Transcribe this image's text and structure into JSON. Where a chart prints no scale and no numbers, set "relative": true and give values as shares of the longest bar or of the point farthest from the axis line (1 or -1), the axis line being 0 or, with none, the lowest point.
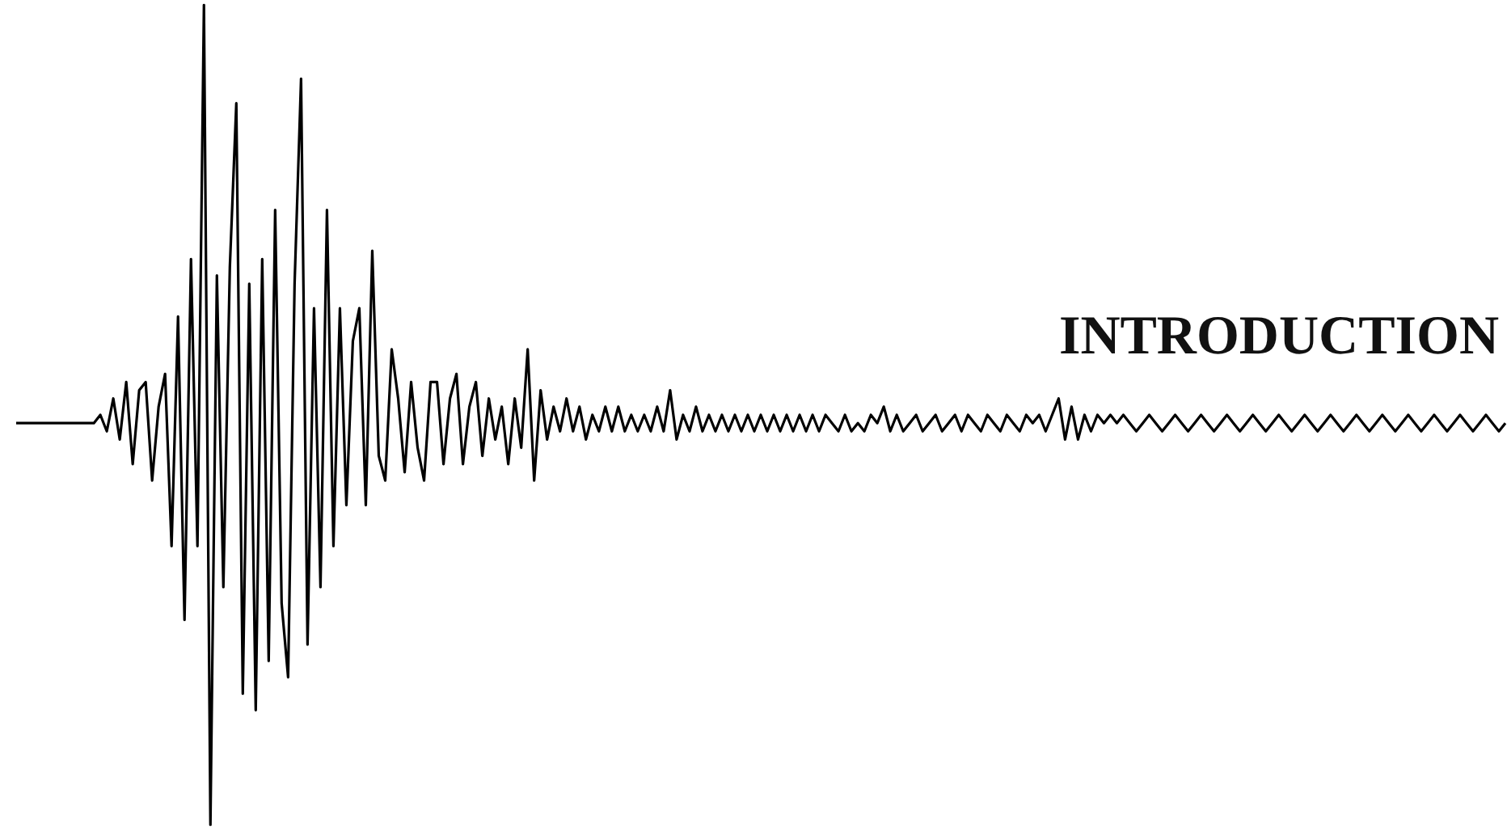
{
  "chart_data": {
    "type": "line",
    "title": "INTRODUCTION",
    "relative": true,
    "grid": false,
    "line_style": "solid",
    "categories": [
      null,
      null,
      null,
      null,
      null,
      null,
      null,
      null,
      null,
      null,
      null,
      null,
      null,
      null,
      null,
      null,
      null,
      null,
      null,
      null,
      null,
      null,
      null,
      null,
      null,
      null,
      null,
      null,
      null,
      null,
      null,
      null,
      null,
      null,
      null,
      null,
      null,
      null,
      null,
      null,
      null,
      null,
      null,
      null,
      null,
      null,
      null,
      null,
      null,
      null,
      null,
      null,
      null,
      null,
      null,
      null,
      null,
      null,
      null,
      null,
      null,
      null,
      null,
      null,
      null,
      null,
      null,
      null,
      null,
      null,
      null,
      null,
      null,
      null,
      null,
      null,
      null,
      null,
      null,
      null,
      null,
      null,
      null,
      null,
      null,
      null,
      null,
      null,
      null,
      null,
      null,
      null,
      null,
      null,
      null,
      null,
      null,
      null,
      null,
      null,
      null,
      null,
      null,
      null,
      null,
      null,
      null,
      null,
      null,
      null,
      null,
      null,
      null,
      null,
      null,
      null,
      null,
      null,
      null,
      null,
      null,
      null,
      null,
      null,
      null,
      null,
      null,
      null,
      null,
      null,
      null,
      null,
      null,
      null,
      null,
      null,
      null,
      null,
      null,
      null,
      null,
      null,
      null,
      null,
      null,
      null,
      null,
      null,
      null,
      null,
      null,
      null,
      null,
      null,
      null,
      null,
      null,
      null,
      null,
      null,
      null,
      null,
      null,
      null,
      null,
      null,
      null,
      null,
      null,
      null,
      null,
      null,
      null,
      null,
      null,
      null,
      null,
      null,
      null,
      null,
      null,
      null,
      null,
      null,
      null,
      null,
      null,
      null,
      null,
      null,
      null,
      null,
      null,
      null,
      null,
      null,
      null,
      null,
      null,
      null,
      null,
      null,
      null,
      null,
      null,
      null,
      null,
      null,
      null,
      null,
      null,
      null,
      null,
      null,
      null,
      null,
      null,
      null,
      null,
      null,
      null,
      null,
      null,
      null,
      null,
      null,
      null,
      null,
      null,
      null,
      null
    ],
    "series": [
      {
        "color": "#000000",
        "values": [
          0.49,
          0.49,
          0.49,
          0.49,
          0.49,
          0.49,
          0.49,
          0.49,
          0.49,
          0.49,
          0.49,
          0.49,
          0.49,
          0.5,
          0.48,
          0.52,
          0.47,
          0.54,
          0.44,
          0.53,
          0.54,
          0.42,
          0.51,
          0.55,
          0.34,
          0.62,
          0.25,
          0.69,
          0.34,
          1,
          0,
          0.67,
          0.29,
          0.68,
          0.88,
          0.16,
          0.66,
          0.14,
          0.69,
          0.2,
          0.75,
          0.27,
          0.18,
          0.66,
          0.91,
          0.22,
          0.63,
          0.29,
          0.75,
          0.34,
          0.63,
          0.39,
          0.59,
          0.63,
          0.39,
          0.7,
          0.45,
          0.42,
          0.58,
          0.52,
          0.43,
          0.54,
          0.46,
          0.42,
          0.54,
          0.54,
          0.44,
          0.52,
          0.55,
          0.44,
          0.51,
          0.54,
          0.45,
          0.52,
          0.47,
          0.51,
          0.44,
          0.52,
          0.46,
          0.58,
          0.42,
          0.53,
          0.47,
          0.51,
          0.48,
          0.52,
          0.48,
          0.51,
          0.47,
          0.5,
          0.48,
          0.51,
          0.48,
          0.51,
          0.48,
          0.5,
          0.48,
          0.5,
          0.48,
          0.51,
          0.48,
          0.53,
          0.47,
          0.5,
          0.48,
          0.51,
          0.48,
          0.5,
          0.48,
          0.5,
          0.48,
          0.5,
          0.48,
          0.5,
          0.48,
          0.5,
          0.48,
          0.5,
          0.48,
          0.5,
          0.48,
          0.5,
          0.48,
          0.5,
          0.48,
          0.5,
          0.49,
          0.48,
          0.5,
          0.48,
          0.49,
          0.48,
          0.5,
          0.49,
          0.51,
          0.48,
          0.5,
          0.48,
          0.49,
          0.5,
          0.48,
          0.49,
          0.5,
          0.48,
          0.49,
          0.5,
          0.48,
          0.5,
          0.49,
          0.48,
          0.5,
          0.49,
          0.48,
          0.5,
          0.49,
          0.48,
          0.5,
          0.49,
          0.5,
          0.48,
          0.5,
          0.52,
          0.47,
          0.51,
          0.47,
          0.5,
          0.48,
          0.5,
          0.49,
          0.5,
          0.49,
          0.5,
          0.49,
          0.48,
          0.49,
          0.5,
          0.49,
          0.48,
          0.49,
          0.5,
          0.49,
          0.48,
          0.49,
          0.5,
          0.49,
          0.48,
          0.49,
          0.5,
          0.49,
          0.48,
          0.49,
          0.5,
          0.49,
          0.48,
          0.49,
          0.5,
          0.49,
          0.48,
          0.49,
          0.5,
          0.49,
          0.48,
          0.49,
          0.5,
          0.49,
          0.48,
          0.49,
          0.5,
          0.49,
          0.48,
          0.49,
          0.5,
          0.49,
          0.48,
          0.49,
          0.5,
          0.49,
          0.48,
          0.49,
          0.5,
          0.49,
          0.48,
          0.49,
          0.5,
          0.49,
          0.48,
          0.49,
          0.5,
          0.49,
          0.48,
          0.49
        ]
      }
    ]
  }
}
